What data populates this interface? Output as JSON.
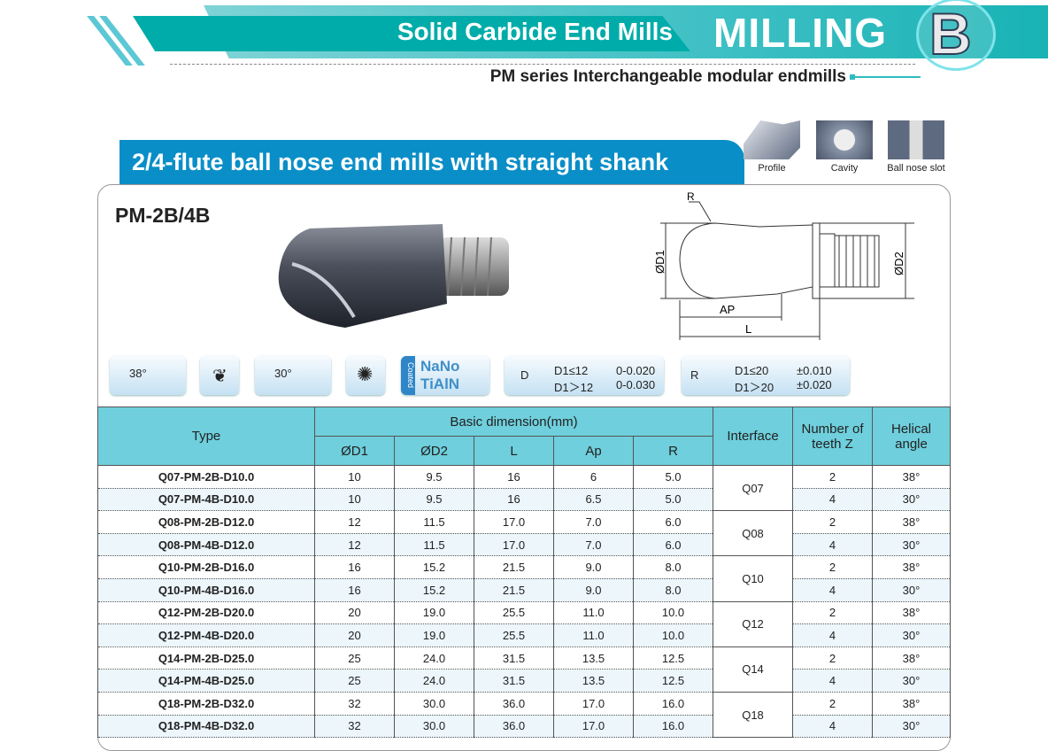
{
  "header": {
    "band_title": "Solid Carbide End Mills",
    "section": "MILLING",
    "section_letter": "B",
    "subtitle": "PM series Interchangeable modular endmills",
    "accent": "#00aca9"
  },
  "title_tab": {
    "label": "2/4-flute ball nose end mills with straight shank",
    "color": "#0a8ec7"
  },
  "applications": [
    {
      "label": "Profile"
    },
    {
      "label": "Cavity"
    },
    {
      "label": "Ball nose slot"
    }
  ],
  "model": "PM-2B/4B",
  "drawing": {
    "r": "R",
    "d1": "ØD1",
    "d2": "ØD2",
    "ap": "AP",
    "l": "L"
  },
  "feature_icons": {
    "angle1": "38°",
    "angle2": "30°",
    "coating_side": "Coated",
    "coating_1": "NaNo",
    "coating_2": "TiAlN",
    "d_tol": {
      "symbol": "D",
      "rows": [
        [
          "D1≤12",
          "0-0.020"
        ],
        [
          "D1＞12",
          "0-0.030"
        ]
      ]
    },
    "r_tol": {
      "symbol": "R",
      "rows": [
        [
          "D1≤20",
          "±0.010"
        ],
        [
          "D1＞20",
          "±0.020"
        ]
      ]
    }
  },
  "table": {
    "headers": {
      "type": "Type",
      "basic": "Basic dimension(mm)",
      "d1": "ØD1",
      "d2": "ØD2",
      "l": "L",
      "ap": "Ap",
      "r": "R",
      "interface": "Interface",
      "teeth": "Number of teeth Z",
      "helix": "Helical angle"
    },
    "rows": [
      [
        "Q07-PM-2B-D10.0",
        "10",
        "9.5",
        "16",
        "6",
        "5.0",
        "Q07",
        "2",
        "38°"
      ],
      [
        "Q07-PM-4B-D10.0",
        "10",
        "9.5",
        "16",
        "6.5",
        "5.0",
        "Q07",
        "4",
        "30°"
      ],
      [
        "Q08-PM-2B-D12.0",
        "12",
        "11.5",
        "17.0",
        "7.0",
        "6.0",
        "Q08",
        "2",
        "38°"
      ],
      [
        "Q08-PM-4B-D12.0",
        "12",
        "11.5",
        "17.0",
        "7.0",
        "6.0",
        "Q08",
        "4",
        "30°"
      ],
      [
        "Q10-PM-2B-D16.0",
        "16",
        "15.2",
        "21.5",
        "9.0",
        "8.0",
        "Q10",
        "2",
        "38°"
      ],
      [
        "Q10-PM-4B-D16.0",
        "16",
        "15.2",
        "21.5",
        "9.0",
        "8.0",
        "Q10",
        "4",
        "30°"
      ],
      [
        "Q12-PM-2B-D20.0",
        "20",
        "19.0",
        "25.5",
        "11.0",
        "10.0",
        "Q12",
        "2",
        "38°"
      ],
      [
        "Q12-PM-4B-D20.0",
        "20",
        "19.0",
        "25.5",
        "11.0",
        "10.0",
        "Q12",
        "4",
        "30°"
      ],
      [
        "Q14-PM-2B-D25.0",
        "25",
        "24.0",
        "31.5",
        "13.5",
        "12.5",
        "Q14",
        "2",
        "38°"
      ],
      [
        "Q14-PM-4B-D25.0",
        "25",
        "24.0",
        "31.5",
        "13.5",
        "12.5",
        "Q14",
        "4",
        "30°"
      ],
      [
        "Q18-PM-2B-D32.0",
        "32",
        "30.0",
        "36.0",
        "17.0",
        "16.0",
        "Q18",
        "2",
        "38°"
      ],
      [
        "Q18-PM-4B-D32.0",
        "32",
        "30.0",
        "36.0",
        "17.0",
        "16.0",
        "Q18",
        "4",
        "30°"
      ]
    ]
  }
}
